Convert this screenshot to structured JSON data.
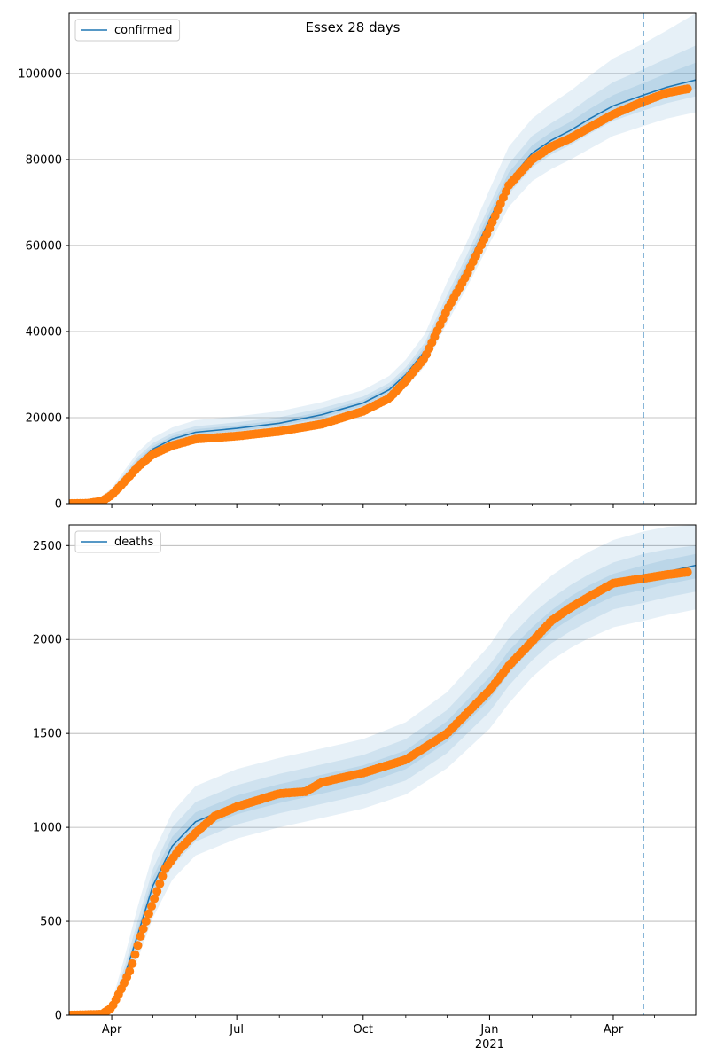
{
  "title": "Essex 28 days",
  "colors": {
    "model": "#1f77b4",
    "observed": "#ff7f0e",
    "grid": "#b0b0b0"
  },
  "xaxis": {
    "range": [
      "2020-03-01",
      "2021-05-31"
    ],
    "major_ticks": [
      {
        "date": "2020-04-01",
        "label": "Apr"
      },
      {
        "date": "2020-07-01",
        "label": "Jul"
      },
      {
        "date": "2020-10-01",
        "label": "Oct"
      },
      {
        "date": "2021-01-01",
        "label": "Jan"
      },
      {
        "date": "2021-04-01",
        "label": "Apr"
      }
    ],
    "year_label": {
      "date": "2021-01-01",
      "label": "2021"
    },
    "minor_ticks": [
      "2020-05-01",
      "2020-06-01",
      "2020-08-01",
      "2020-09-01",
      "2020-11-01",
      "2020-12-01",
      "2021-02-01",
      "2021-03-01",
      "2021-05-01"
    ],
    "forecast_line_date": "2021-04-23"
  },
  "chart_data": [
    {
      "type": "line",
      "legend": "confirmed",
      "legend_position": "top-left",
      "grid": "horizontal",
      "ylim": [
        0,
        114000
      ],
      "yticks": [
        0,
        20000,
        40000,
        60000,
        80000,
        100000
      ],
      "ytick_labels": [
        "0",
        "20000",
        "40000",
        "60000",
        "80000",
        "100000"
      ],
      "model": {
        "x": [
          "2020-03-01",
          "2020-03-20",
          "2020-04-01",
          "2020-04-10",
          "2020-04-20",
          "2020-05-01",
          "2020-05-15",
          "2020-06-01",
          "2020-07-01",
          "2020-08-01",
          "2020-09-01",
          "2020-10-01",
          "2020-10-20",
          "2020-11-01",
          "2020-11-15",
          "2020-12-01",
          "2020-12-15",
          "2021-01-01",
          "2021-01-15",
          "2021-02-01",
          "2021-02-15",
          "2021-03-01",
          "2021-03-15",
          "2021-04-01",
          "2021-04-23",
          "2021-05-10",
          "2021-05-31"
        ],
        "y": [
          0,
          300,
          2500,
          5800,
          9500,
          12700,
          15000,
          16600,
          17500,
          18700,
          20700,
          23400,
          26500,
          30000,
          35500,
          46000,
          54500,
          66000,
          75000,
          81500,
          84500,
          86800,
          89500,
          92500,
          95000,
          96800,
          98500
        ],
        "bands": [
          {
            "lower": [
              0,
              200,
              1600,
              4200,
              7400,
              10400,
              12600,
              14100,
              15000,
              16200,
              18100,
              20700,
              23600,
              27000,
              32000,
              42000,
              50000,
              60500,
              69000,
              75000,
              77800,
              80000,
              82500,
              85500,
              87800,
              89500,
              91000
            ],
            "upper": [
              0,
              500,
              3600,
              7600,
              12000,
              15300,
              17700,
              19400,
              20300,
              21500,
              23600,
              26400,
              29700,
              33500,
              39500,
              51500,
              60500,
              73000,
              83000,
              89500,
              93000,
              96000,
              99500,
              103500,
              107000,
              110000,
              114000
            ]
          },
          {
            "lower": [
              0,
              250,
              2000,
              4900,
              8400,
              11500,
              13700,
              15300,
              16200,
              17400,
              19300,
              22000,
              25000,
              28400,
              33700,
              44000,
              52200,
              63200,
              72000,
              78200,
              81200,
              83400,
              86000,
              89000,
              91400,
              93100,
              94700
            ],
            "upper": [
              0,
              400,
              3100,
              6800,
              10900,
              14100,
              16400,
              18000,
              18900,
              20100,
              22200,
              24900,
              28100,
              31700,
              37500,
              48500,
              57500,
              69500,
              79000,
              85500,
              88500,
              91200,
              94500,
              98000,
              101000,
              103500,
              106500
            ]
          },
          {
            "lower": [
              0,
              280,
              2250,
              5350,
              8950,
              12100,
              14350,
              15950,
              16850,
              18050,
              20000,
              22700,
              25750,
              29200,
              34600,
              45000,
              53300,
              64600,
              73500,
              79800,
              82800,
              85100,
              87700,
              90700,
              93100,
              94900,
              96500
            ],
            "upper": [
              0,
              350,
              2800,
              6300,
              10200,
              13400,
              15700,
              17300,
              18200,
              19400,
              21400,
              24100,
              27300,
              30900,
              36500,
              47300,
              56000,
              67800,
              77000,
              83300,
              86400,
              88800,
              91800,
              95000,
              97800,
              100000,
              102500
            ]
          }
        ]
      },
      "observed": {
        "x": [
          "2020-03-01",
          "2020-03-15",
          "2020-03-25",
          "2020-04-01",
          "2020-04-10",
          "2020-04-20",
          "2020-05-01",
          "2020-05-15",
          "2020-06-01",
          "2020-07-01",
          "2020-08-01",
          "2020-09-01",
          "2020-10-01",
          "2020-10-20",
          "2020-11-01",
          "2020-11-15",
          "2020-12-01",
          "2020-12-15",
          "2021-01-01",
          "2021-01-15",
          "2021-02-01",
          "2021-02-15",
          "2021-03-01",
          "2021-03-15",
          "2021-04-01",
          "2021-04-23",
          "2021-05-10",
          "2021-05-26"
        ],
        "y": [
          0,
          100,
          600,
          2000,
          5000,
          8500,
          11500,
          13500,
          15000,
          15700,
          16800,
          18500,
          21500,
          24500,
          28500,
          34000,
          45000,
          53000,
          64000,
          74000,
          80000,
          83000,
          85000,
          87500,
          90500,
          93500,
          95500,
          96500
        ]
      }
    },
    {
      "type": "line",
      "legend": "deaths",
      "legend_position": "top-left",
      "grid": "horizontal",
      "ylim": [
        0,
        2610
      ],
      "yticks": [
        0,
        500,
        1000,
        1500,
        2000,
        2500
      ],
      "ytick_labels": [
        "0",
        "500",
        "1000",
        "1500",
        "2000",
        "2500"
      ],
      "model": {
        "x": [
          "2020-03-01",
          "2020-03-25",
          "2020-04-01",
          "2020-04-10",
          "2020-04-20",
          "2020-05-01",
          "2020-05-15",
          "2020-06-01",
          "2020-07-01",
          "2020-08-01",
          "2020-09-01",
          "2020-10-01",
          "2020-11-01",
          "2020-12-01",
          "2021-01-01",
          "2021-01-15",
          "2021-02-01",
          "2021-02-15",
          "2021-03-01",
          "2021-03-15",
          "2021-04-01",
          "2021-04-23",
          "2021-05-10",
          "2021-05-31"
        ],
        "y": [
          0,
          5,
          40,
          200,
          430,
          690,
          900,
          1030,
          1120,
          1180,
          1230,
          1280,
          1360,
          1510,
          1740,
          1880,
          2010,
          2100,
          2170,
          2230,
          2290,
          2330,
          2360,
          2395
        ],
        "bands": [
          {
            "lower": [
              0,
              2,
              20,
              120,
              300,
              520,
              720,
              850,
              940,
              1000,
              1050,
              1100,
              1175,
              1315,
              1525,
              1660,
              1800,
              1890,
              1955,
              2010,
              2065,
              2100,
              2130,
              2160
            ],
            "upper": [
              0,
              10,
              70,
              300,
              580,
              860,
              1080,
              1220,
              1310,
              1370,
              1420,
              1470,
              1560,
              1720,
              1970,
              2120,
              2250,
              2340,
              2410,
              2470,
              2530,
              2575,
              2600,
              2610
            ]
          },
          {
            "lower": [
              0,
              3,
              28,
              155,
              360,
              590,
              795,
              925,
              1015,
              1075,
              1125,
              1175,
              1250,
              1395,
              1615,
              1755,
              1890,
              1980,
              2045,
              2100,
              2160,
              2195,
              2225,
              2255
            ],
            "upper": [
              0,
              8,
              55,
              250,
              505,
              780,
              1000,
              1135,
              1225,
              1285,
              1335,
              1385,
              1470,
              1625,
              1865,
              2005,
              2135,
              2220,
              2290,
              2350,
              2410,
              2455,
              2480,
              2500
            ]
          },
          {
            "lower": [
              0,
              4,
              34,
              180,
              400,
              645,
              850,
              980,
              1070,
              1130,
              1180,
              1230,
              1310,
              1455,
              1680,
              1820,
              1955,
              2045,
              2110,
              2170,
              2230,
              2265,
              2295,
              2325
            ],
            "upper": [
              0,
              6,
              46,
              220,
              460,
              735,
              950,
              1080,
              1170,
              1230,
              1280,
              1330,
              1410,
              1565,
              1800,
              1940,
              2065,
              2155,
              2230,
              2290,
              2350,
              2395,
              2425,
              2455
            ]
          }
        ]
      },
      "observed": {
        "x": [
          "2020-03-01",
          "2020-03-25",
          "2020-04-01",
          "2020-04-08",
          "2020-04-15",
          "2020-04-22",
          "2020-05-01",
          "2020-05-10",
          "2020-05-20",
          "2020-06-01",
          "2020-06-15",
          "2020-07-01",
          "2020-08-01",
          "2020-08-20",
          "2020-09-01",
          "2020-10-01",
          "2020-11-01",
          "2020-12-01",
          "2021-01-01",
          "2021-01-15",
          "2021-02-01",
          "2021-02-15",
          "2021-03-01",
          "2021-03-15",
          "2021-04-01",
          "2021-04-23",
          "2021-05-10",
          "2021-05-26"
        ],
        "y": [
          0,
          5,
          40,
          140,
          250,
          420,
          600,
          780,
          880,
          970,
          1060,
          1110,
          1180,
          1190,
          1240,
          1290,
          1360,
          1500,
          1730,
          1860,
          1990,
          2100,
          2170,
          2230,
          2300,
          2325,
          2345,
          2360
        ]
      }
    }
  ]
}
